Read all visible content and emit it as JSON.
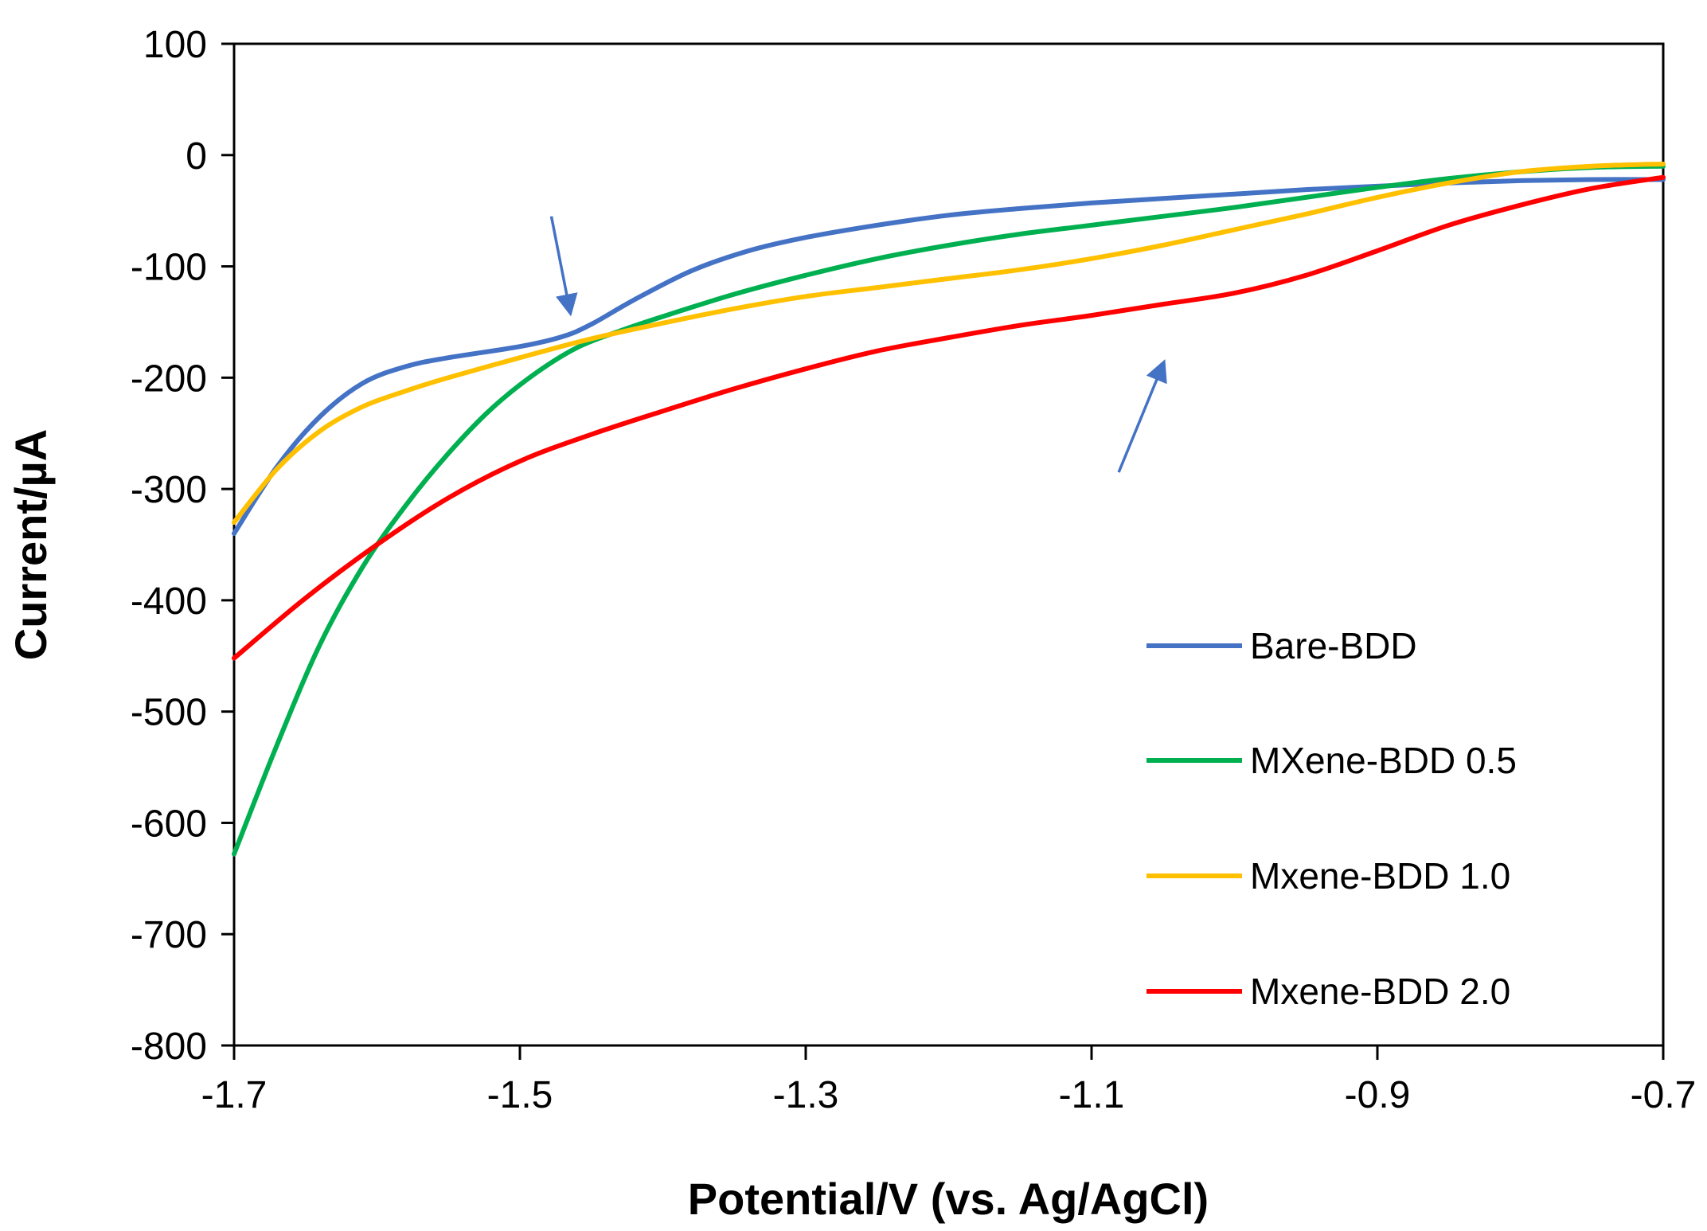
{
  "chart_data": {
    "type": "line",
    "title": "",
    "xlabel": "Potential/V (vs. Ag/AgCl)",
    "ylabel": "Current/µA",
    "xlim": [
      -1.7,
      -0.7
    ],
    "ylim": [
      -800,
      100
    ],
    "xticks": [
      -1.7,
      -1.5,
      -1.3,
      -1.1,
      -0.9,
      -0.7
    ],
    "xtick_labels": [
      "-1.7",
      "-1.5",
      "-1.3",
      "-1.1",
      "-0.9",
      "-0.7"
    ],
    "yticks": [
      100,
      0,
      -100,
      -200,
      -300,
      -400,
      -500,
      -600,
      -700,
      -800
    ],
    "ytick_labels": [
      "100",
      "0",
      "-100",
      "-200",
      "-300",
      "-400",
      "-500",
      "-600",
      "-700",
      "-800"
    ],
    "grid": false,
    "legend_position": "center-right",
    "series": [
      {
        "name": "Bare-BDD",
        "color": "#4472C4",
        "x": [
          -1.7,
          -1.67,
          -1.64,
          -1.61,
          -1.58,
          -1.55,
          -1.5,
          -1.47,
          -1.45,
          -1.42,
          -1.38,
          -1.34,
          -1.3,
          -1.25,
          -1.2,
          -1.15,
          -1.1,
          -1.05,
          -1.0,
          -0.95,
          -0.9,
          -0.85,
          -0.8,
          -0.75,
          -0.7
        ],
        "y": [
          -340,
          -280,
          -235,
          -205,
          -190,
          -182,
          -172,
          -163,
          -152,
          -130,
          -104,
          -86,
          -74,
          -63,
          -54,
          -48,
          -43,
          -39,
          -35,
          -31,
          -28,
          -25,
          -23,
          -22,
          -22
        ]
      },
      {
        "name": "MXene-BDD 0.5",
        "color": "#00B050",
        "x": [
          -1.7,
          -1.67,
          -1.64,
          -1.61,
          -1.58,
          -1.55,
          -1.52,
          -1.49,
          -1.46,
          -1.43,
          -1.4,
          -1.35,
          -1.3,
          -1.25,
          -1.2,
          -1.15,
          -1.1,
          -1.05,
          -1.0,
          -0.95,
          -0.9,
          -0.85,
          -0.8,
          -0.75,
          -0.7
        ],
        "y": [
          -628,
          -530,
          -440,
          -370,
          -315,
          -268,
          -228,
          -197,
          -173,
          -158,
          -145,
          -125,
          -108,
          -93,
          -81,
          -71,
          -63,
          -55,
          -47,
          -38,
          -29,
          -21,
          -15,
          -11,
          -10
        ]
      },
      {
        "name": "Mxene-BDD 1.0",
        "color": "#FFC000",
        "x": [
          -1.7,
          -1.67,
          -1.64,
          -1.61,
          -1.58,
          -1.55,
          -1.5,
          -1.45,
          -1.4,
          -1.35,
          -1.3,
          -1.25,
          -1.2,
          -1.15,
          -1.1,
          -1.05,
          -1.0,
          -0.95,
          -0.9,
          -0.85,
          -0.8,
          -0.75,
          -0.7
        ],
        "y": [
          -330,
          -282,
          -248,
          -226,
          -212,
          -200,
          -182,
          -165,
          -151,
          -138,
          -127,
          -119,
          -111,
          -103,
          -93,
          -81,
          -67,
          -53,
          -38,
          -25,
          -15,
          -10,
          -8
        ]
      },
      {
        "name": "Mxene-BDD 2.0",
        "color": "#FF0000",
        "x": [
          -1.7,
          -1.65,
          -1.6,
          -1.55,
          -1.5,
          -1.45,
          -1.4,
          -1.35,
          -1.3,
          -1.25,
          -1.2,
          -1.15,
          -1.1,
          -1.05,
          -1.0,
          -0.95,
          -0.9,
          -0.85,
          -0.8,
          -0.75,
          -0.7
        ],
        "y": [
          -452,
          -398,
          -350,
          -308,
          -275,
          -251,
          -230,
          -210,
          -192,
          -176,
          -164,
          -153,
          -144,
          -134,
          -124,
          -108,
          -86,
          -63,
          -45,
          -30,
          -20
        ]
      }
    ],
    "annotations": [
      {
        "type": "arrow",
        "direction": "down",
        "color": "#4472C4",
        "from": [
          -1.478,
          -55
        ],
        "to": [
          -1.465,
          -140
        ]
      },
      {
        "type": "arrow",
        "direction": "up",
        "color": "#4472C4",
        "from": [
          -1.081,
          -285
        ],
        "to": [
          -1.05,
          -188
        ]
      }
    ]
  }
}
